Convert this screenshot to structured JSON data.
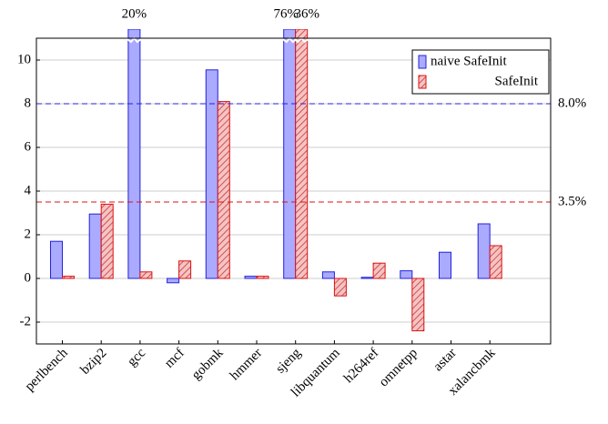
{
  "chart_data": {
    "type": "bar",
    "categories": [
      "perlbench",
      "bzip2",
      "gcc",
      "mcf",
      "gobmk",
      "hmmer",
      "sjeng",
      "libquantum",
      "h264ref",
      "omnetpp",
      "astar",
      "xalancbmk"
    ],
    "series": [
      {
        "name": "naive SafeInit",
        "color": "#aaaaff",
        "stroke": "#2222dd",
        "hatch": false,
        "values": [
          1.7,
          2.95,
          20,
          -0.2,
          9.55,
          0.1,
          76,
          0.3,
          0.05,
          0.35,
          1.2,
          2.5
        ],
        "value_labels": [
          null,
          null,
          "20%",
          null,
          null,
          null,
          "76%",
          null,
          null,
          null,
          null,
          null
        ]
      },
      {
        "name": "SafeInit",
        "color": "#ee9999",
        "stroke": "#dd1111",
        "hatch": true,
        "values": [
          0.1,
          3.4,
          0.3,
          0.8,
          8.1,
          0.1,
          36,
          -0.8,
          0.7,
          -2.4,
          0.0,
          1.5
        ],
        "value_labels": [
          null,
          null,
          null,
          null,
          null,
          null,
          "36%",
          null,
          null,
          null,
          null,
          null
        ]
      }
    ],
    "ylim": [
      -3,
      11
    ],
    "yticks": [
      -2,
      0,
      2,
      4,
      6,
      8,
      10
    ],
    "grid": true,
    "legend": "top-right",
    "reference_lines": [
      {
        "value": 8.0,
        "label": "8.0%",
        "color": "#2222dd"
      },
      {
        "value": 3.5,
        "label": "3.5%",
        "color": "#dd1111"
      }
    ]
  }
}
